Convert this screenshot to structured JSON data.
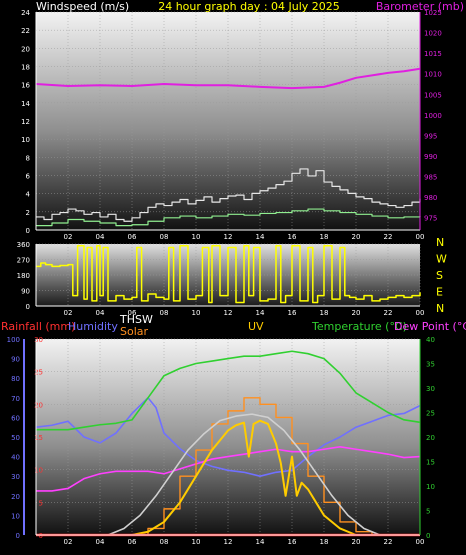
{
  "colors": {
    "wind_gust": "#e6e6e6",
    "wind_avg": "#90ee90",
    "barometer": "#e020e0",
    "wind_dir": "#ffff00",
    "rain": "#ff3030",
    "humidity": "#7070ff",
    "thsw": "#ffffff",
    "solar": "#ff9020",
    "uv": "#ffcc00",
    "temperature": "#30d030",
    "dewpoint": "#ff40ff",
    "title": "#ffff00",
    "axis": "#ffffff"
  },
  "chart_data": [
    {
      "type": "line",
      "title": "24 hour graph day : 04 July 2025",
      "ylabel": "Windspeed (m/s)",
      "y2label": "Barometer (mb)",
      "ylim": [
        0,
        25
      ],
      "y2lim": [
        972,
        1025
      ],
      "yticks": [
        "0",
        "2",
        "4",
        "6",
        "8",
        "10",
        "12",
        "14",
        "16",
        "18",
        "20",
        "22",
        "24"
      ],
      "y2ticks": [
        "975",
        "980",
        "985",
        "990",
        "995",
        "1000",
        "1005",
        "1010",
        "1015",
        "1020",
        "1025"
      ],
      "xlim": [
        0,
        24
      ],
      "xticks": [
        "02",
        "04",
        "06",
        "08",
        "10",
        "12",
        "14",
        "16",
        "18",
        "20",
        "22",
        "00"
      ],
      "grid": true,
      "series": [
        {
          "name": "Wind gust",
          "x": [
            0,
            0.5,
            1,
            1.5,
            2,
            2.5,
            3,
            3.5,
            4,
            4.5,
            5,
            5.5,
            6,
            6.5,
            7,
            7.5,
            8,
            8.5,
            9,
            9.5,
            10,
            10.5,
            11,
            11.5,
            12,
            12.5,
            13,
            13.5,
            14,
            14.5,
            15,
            15.5,
            16,
            16.5,
            17,
            17.5,
            18,
            18.5,
            19,
            19.5,
            20,
            20.5,
            21,
            21.5,
            22,
            22.5,
            23,
            23.5,
            24
          ],
          "values": [
            1.5,
            1.2,
            1.8,
            2.0,
            2.4,
            2.2,
            1.8,
            2.0,
            1.5,
            1.8,
            1.2,
            1.0,
            1.4,
            2.0,
            2.6,
            3.0,
            2.8,
            3.2,
            3.5,
            3.0,
            3.4,
            3.8,
            3.2,
            3.6,
            3.9,
            4.0,
            3.5,
            4.2,
            4.5,
            4.8,
            5.2,
            5.6,
            6.5,
            7.0,
            6.2,
            6.8,
            5.5,
            5.0,
            4.6,
            4.2,
            3.8,
            3.6,
            3.2,
            3.0,
            2.8,
            2.6,
            2.8,
            3.2,
            3.6
          ]
        },
        {
          "name": "Wind average",
          "x": [
            0,
            1,
            2,
            3,
            4,
            5,
            6,
            7,
            8,
            9,
            10,
            11,
            12,
            13,
            14,
            15,
            16,
            17,
            18,
            19,
            20,
            21,
            22,
            23,
            24
          ],
          "values": [
            0.5,
            0.8,
            1.2,
            1.0,
            0.8,
            0.5,
            0.6,
            1.0,
            1.4,
            1.6,
            1.4,
            1.6,
            1.8,
            1.7,
            1.9,
            2.0,
            2.2,
            2.4,
            2.2,
            2.0,
            1.8,
            1.6,
            1.4,
            1.5,
            1.6
          ]
        },
        {
          "name": "Barometer",
          "axis": "y2",
          "x": [
            0,
            2,
            4,
            6,
            8,
            10,
            12,
            14,
            16,
            18,
            19,
            20,
            21,
            22,
            23,
            24
          ],
          "values": [
            1007.5,
            1007.0,
            1007.2,
            1007.0,
            1007.5,
            1007.2,
            1007.2,
            1006.8,
            1006.5,
            1006.8,
            1007.8,
            1009.0,
            1009.6,
            1010.2,
            1010.6,
            1011.2
          ]
        }
      ]
    },
    {
      "type": "line",
      "ylabel": "",
      "ylim": [
        0,
        360
      ],
      "yticks": [
        "0",
        "90",
        "180",
        "270",
        "360"
      ],
      "y2ticks": [
        "N",
        "E",
        "S",
        "W",
        "N"
      ],
      "xlim": [
        0,
        24
      ],
      "xticks": [
        "02",
        "04",
        "06",
        "08",
        "10",
        "12",
        "14",
        "16",
        "18",
        "20",
        "22",
        "00"
      ],
      "grid": true,
      "series": [
        {
          "name": "Wind direction",
          "x": [
            0,
            0.3,
            0.6,
            1,
            1.5,
            2,
            2.3,
            2.6,
            3,
            3.2,
            3.5,
            3.8,
            4,
            4.2,
            4.5,
            5,
            5.5,
            6,
            6.3,
            6.6,
            7,
            7.5,
            8,
            8.3,
            8.6,
            9,
            9.5,
            10,
            10.4,
            10.8,
            11,
            11.5,
            12,
            12.5,
            13,
            13.3,
            13.6,
            14,
            14.5,
            15,
            15.3,
            15.6,
            16,
            16.5,
            17,
            17.3,
            17.6,
            18,
            18.5,
            19,
            19.3,
            19.6,
            20,
            20.5,
            21,
            21.5,
            22,
            22.5,
            23,
            23.5,
            24
          ],
          "values": [
            230,
            250,
            240,
            230,
            235,
            240,
            60,
            350,
            40,
            340,
            30,
            350,
            60,
            340,
            30,
            60,
            40,
            50,
            340,
            30,
            70,
            50,
            40,
            340,
            30,
            350,
            40,
            60,
            340,
            20,
            350,
            60,
            340,
            20,
            350,
            60,
            340,
            30,
            40,
            350,
            20,
            60,
            350,
            30,
            340,
            20,
            60,
            350,
            40,
            340,
            60,
            50,
            40,
            60,
            30,
            40,
            50,
            60,
            50,
            60,
            80
          ]
        }
      ]
    },
    {
      "type": "line",
      "ylabel": "Rainfall (mm)",
      "labels": [
        "Rainfall (mm)",
        "Humidity",
        "THSW",
        "Solar",
        "UV",
        "Temperature (°C)",
        "Dew Point (°C)"
      ],
      "ylim": [
        0,
        30
      ],
      "y2lim": [
        0,
        40
      ],
      "humidity_lim": [
        0,
        100
      ],
      "yticks": [
        "0",
        "5",
        "10",
        "15",
        "20",
        "25",
        "30"
      ],
      "humidity_ticks": [
        "0",
        "10",
        "20",
        "30",
        "40",
        "50",
        "60",
        "70",
        "80",
        "90",
        "100"
      ],
      "y2ticks": [
        "0",
        "5",
        "10",
        "15",
        "20",
        "25",
        "30",
        "35",
        "40"
      ],
      "xlim": [
        0,
        24
      ],
      "xticks": [
        "02",
        "04",
        "06",
        "08",
        "10",
        "12",
        "14",
        "16",
        "18",
        "20",
        "22",
        "00"
      ],
      "grid": true,
      "series": [
        {
          "name": "Humidity",
          "axis": "humidity",
          "x": [
            0,
            1,
            2,
            3,
            4,
            5,
            6,
            7,
            7.5,
            8,
            9,
            10,
            11,
            12,
            13,
            14,
            15,
            16,
            17,
            18,
            19,
            20,
            21,
            22,
            23,
            24
          ],
          "values": [
            55,
            56,
            58,
            50,
            47,
            52,
            62,
            70,
            65,
            52,
            44,
            38,
            35,
            33,
            32,
            30,
            32,
            33,
            40,
            46,
            50,
            55,
            58,
            61,
            62,
            66
          ]
        },
        {
          "name": "Temperature",
          "axis": "y2",
          "x": [
            0,
            1,
            2,
            3,
            4,
            5,
            6,
            7,
            8,
            9,
            10,
            11,
            12,
            13,
            14,
            15,
            16,
            17,
            18,
            19,
            20,
            21,
            22,
            23,
            24
          ],
          "values": [
            21.5,
            21.5,
            21.5,
            22.0,
            22.5,
            22.8,
            23.5,
            28.0,
            32.5,
            34.0,
            35.0,
            35.5,
            36.0,
            36.5,
            36.5,
            37.0,
            37.5,
            37.0,
            36.0,
            33.0,
            29.0,
            27.0,
            25.0,
            23.5,
            23.0
          ]
        },
        {
          "name": "Dew Point",
          "axis": "y2",
          "x": [
            0,
            1,
            2,
            3,
            4,
            5,
            6,
            7,
            8,
            9,
            10,
            11,
            12,
            13,
            14,
            15,
            16,
            17,
            18,
            19,
            20,
            21,
            22,
            23,
            24
          ],
          "values": [
            9.0,
            9.0,
            9.5,
            11.5,
            12.5,
            13.0,
            13.0,
            13.0,
            12.5,
            13.5,
            14.5,
            15.5,
            16.0,
            16.5,
            17.0,
            17.5,
            17.0,
            17.0,
            17.5,
            18.0,
            17.5,
            17.0,
            16.5,
            15.8,
            16.0
          ]
        },
        {
          "name": "Solar",
          "axis": "y",
          "x": [
            5,
            6,
            7,
            8,
            9,
            10,
            11,
            12,
            13,
            14,
            15,
            16,
            17,
            18,
            19,
            20,
            21
          ],
          "values": [
            0,
            0,
            1,
            4,
            9,
            13,
            17,
            19,
            21,
            20,
            18,
            14,
            9,
            5,
            2,
            0.5,
            0
          ]
        },
        {
          "name": "THSW",
          "axis": "y",
          "x": [
            4.5,
            5.5,
            6.5,
            7.5,
            8.5,
            9.5,
            10.5,
            11.5,
            12.5,
            13.5,
            14.5,
            15.5,
            16.5,
            17.5,
            18.5,
            19.5,
            20.5,
            21.5
          ],
          "values": [
            0,
            1,
            3,
            6,
            9.5,
            13,
            15.5,
            17.5,
            18.2,
            18.5,
            18,
            16,
            13,
            9.5,
            6,
            3,
            1,
            0
          ]
        },
        {
          "name": "UV",
          "axis": "y",
          "x": [
            6,
            7,
            8,
            9,
            10,
            11,
            12,
            12.5,
            13,
            13.3,
            13.6,
            14,
            14.5,
            15,
            15.3,
            15.6,
            16,
            16.3,
            16.6,
            17,
            17.5,
            18,
            19,
            20
          ],
          "values": [
            0,
            0.5,
            2,
            5,
            9,
            13,
            16,
            16.8,
            17.2,
            12,
            17,
            17.5,
            17,
            14,
            11,
            6,
            12,
            6,
            8,
            7,
            5,
            3,
            1,
            0
          ]
        },
        {
          "name": "Rainfall",
          "axis": "y",
          "x": [
            0,
            24
          ],
          "values": [
            0,
            0
          ]
        }
      ]
    }
  ]
}
